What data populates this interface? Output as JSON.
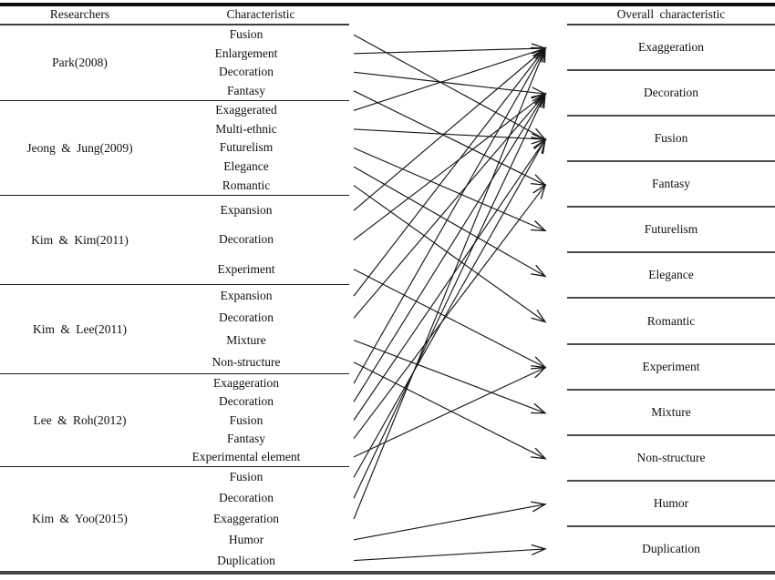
{
  "figure": {
    "left_table": {
      "headers": {
        "researchers": "Researchers",
        "characteristic": "Characteristic"
      },
      "sections": [
        {
          "researcher": "Park(2008)",
          "characteristics": [
            "Fusion",
            "Enlargement",
            "Decoration",
            "Fantasy"
          ]
        },
        {
          "researcher": "Jeong & Jung(2009)",
          "characteristics": [
            "Exaggerated",
            "Multi-ethnic",
            "Futurelism",
            "Elegance",
            "Romantic"
          ]
        },
        {
          "researcher": "Kim & Kim(2011)",
          "characteristics": [
            "Expansion",
            "Decoration",
            "Experiment"
          ]
        },
        {
          "researcher": "Kim & Lee(2011)",
          "characteristics": [
            "Expansion",
            "Decoration",
            "Mixture",
            "Non-structure"
          ]
        },
        {
          "researcher": "Lee & Roh(2012)",
          "characteristics": [
            "Exaggeration",
            "Decoration",
            "Fusion",
            "Fantasy",
            "Experimental element"
          ]
        },
        {
          "researcher": "Kim & Yoo(2015)",
          "characteristics": [
            "Fusion",
            "Decoration",
            "Exaggeration",
            "Humor",
            "Duplication"
          ]
        }
      ]
    },
    "right_table": {
      "header": "Overall characteristic",
      "items": [
        "Exaggeration",
        "Decoration",
        "Fusion",
        "Fantasy",
        "Futurelism",
        "Elegance",
        "Romantic",
        "Experiment",
        "Mixture",
        "Non-structure",
        "Humor",
        "Duplication"
      ]
    },
    "mappings": [
      {
        "section": 0,
        "item": 0,
        "to": "Fusion"
      },
      {
        "section": 0,
        "item": 1,
        "to": "Exaggeration"
      },
      {
        "section": 0,
        "item": 2,
        "to": "Decoration"
      },
      {
        "section": 0,
        "item": 3,
        "to": "Fantasy"
      },
      {
        "section": 1,
        "item": 0,
        "to": "Exaggeration"
      },
      {
        "section": 1,
        "item": 1,
        "to": "Fusion"
      },
      {
        "section": 1,
        "item": 2,
        "to": "Futurelism"
      },
      {
        "section": 1,
        "item": 3,
        "to": "Elegance"
      },
      {
        "section": 1,
        "item": 4,
        "to": "Romantic"
      },
      {
        "section": 2,
        "item": 0,
        "to": "Exaggeration"
      },
      {
        "section": 2,
        "item": 1,
        "to": "Decoration"
      },
      {
        "section": 2,
        "item": 2,
        "to": "Experiment"
      },
      {
        "section": 3,
        "item": 0,
        "to": "Exaggeration"
      },
      {
        "section": 3,
        "item": 1,
        "to": "Decoration"
      },
      {
        "section": 3,
        "item": 2,
        "to": "Mixture"
      },
      {
        "section": 3,
        "item": 3,
        "to": "Non-structure"
      },
      {
        "section": 4,
        "item": 0,
        "to": "Exaggeration"
      },
      {
        "section": 4,
        "item": 1,
        "to": "Decoration"
      },
      {
        "section": 4,
        "item": 2,
        "to": "Fusion"
      },
      {
        "section": 4,
        "item": 3,
        "to": "Fantasy"
      },
      {
        "section": 4,
        "item": 4,
        "to": "Experiment"
      },
      {
        "section": 5,
        "item": 0,
        "to": "Fusion"
      },
      {
        "section": 5,
        "item": 1,
        "to": "Decoration"
      },
      {
        "section": 5,
        "item": 2,
        "to": "Exaggeration"
      },
      {
        "section": 5,
        "item": 3,
        "to": "Humor"
      },
      {
        "section": 5,
        "item": 4,
        "to": "Duplication"
      }
    ]
  },
  "colors": {
    "background": "#ffffff",
    "text": "#101010",
    "arrow": "#161616",
    "thick_rule_top": "#0e0e0e",
    "thick_rule_bottom": "#474747",
    "thin_rule": "#202020",
    "gray_rule": "#4a4a4a"
  }
}
